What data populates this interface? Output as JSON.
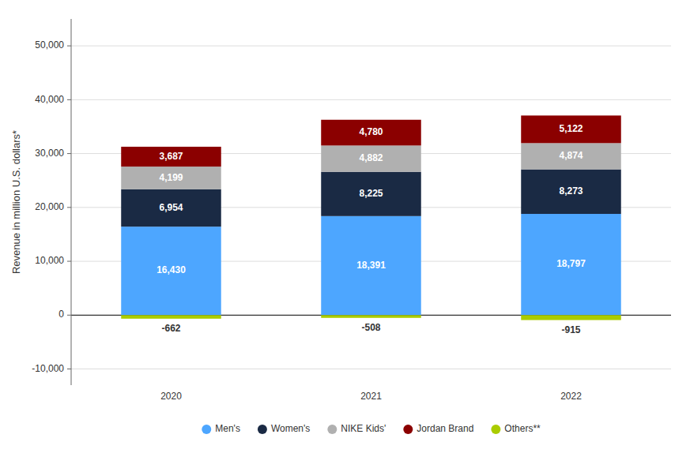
{
  "chart_data": {
    "type": "bar",
    "stacked": true,
    "ylabel": "Revenue in million U.S. dollars*",
    "categories": [
      "2020",
      "2021",
      "2022"
    ],
    "series": [
      {
        "name": "Men's",
        "color": "#4da6ff",
        "values": [
          16430,
          18391,
          18797
        ],
        "value_labels": [
          "16,430",
          "18,391",
          "18,797"
        ]
      },
      {
        "name": "Women's",
        "color": "#1a2a44",
        "values": [
          6954,
          8225,
          8273
        ],
        "value_labels": [
          "6,954",
          "8,225",
          "8,273"
        ]
      },
      {
        "name": "NIKE Kids'",
        "color": "#b0b0b0",
        "values": [
          4199,
          4882,
          4874
        ],
        "value_labels": [
          "4,199",
          "4,882",
          "4,874"
        ]
      },
      {
        "name": "Jordan Brand",
        "color": "#8b0000",
        "values": [
          3687,
          4780,
          5122
        ],
        "value_labels": [
          "3,687",
          "4,780",
          "5,122"
        ]
      },
      {
        "name": "Others**",
        "color": "#aacc00",
        "values": [
          -662,
          -508,
          -915
        ]
      }
    ],
    "ylim": [
      -13000,
      55000
    ],
    "yticks": [
      {
        "value": -10000,
        "label": "-10,000"
      },
      0,
      {
        "value": 10000,
        "label": "10,000"
      },
      {
        "value": 20000,
        "label": "20,000"
      },
      {
        "value": 30000,
        "label": "30,000"
      },
      {
        "value": 40000,
        "label": "40,000"
      },
      {
        "value": 50000,
        "label": "50,000"
      }
    ],
    "grid": true,
    "legend": "bottom",
    "data_labels": true
  }
}
